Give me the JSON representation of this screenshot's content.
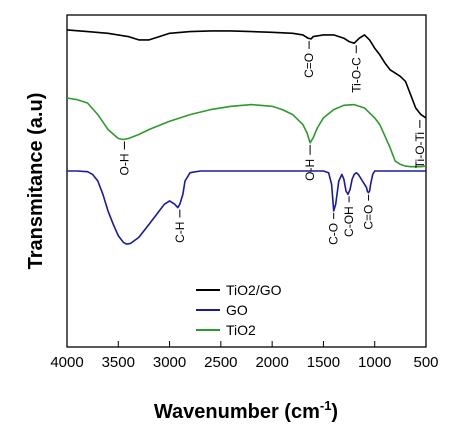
{
  "chart_data": {
    "type": "line",
    "title": "",
    "xlabel": "Wavenumber (cm",
    "xlabel_superscript": "-1",
    "xlabel_close": ")",
    "ylabel": "Transmitance (a.u)",
    "xlim": [
      4000,
      500
    ],
    "x_reversed": true,
    "y_ticks_shown": false,
    "grid": false,
    "xticks": [
      4000,
      3500,
      3000,
      2500,
      2000,
      1500,
      1000,
      500
    ],
    "xtick_labels": [
      "4000",
      "3500",
      "3000",
      "2500",
      "2000",
      "1500",
      "1000",
      "500"
    ],
    "legend": {
      "placement": "bottom-center",
      "entries": [
        {
          "label": "TiO2/GO",
          "color": "#000000"
        },
        {
          "label": "GO",
          "color": "#1a1aa0"
        },
        {
          "label": "TiO2",
          "color": "#2e9a2e"
        }
      ]
    },
    "series": [
      {
        "name": "TiO2/GO",
        "color": "#000000",
        "x": [
          4000,
          3800,
          3600,
          3400,
          3300,
          3200,
          3100,
          3000,
          2800,
          2600,
          2400,
          2200,
          2000,
          1800,
          1700,
          1650,
          1620,
          1600,
          1500,
          1400,
          1300,
          1250,
          1200,
          1150,
          1100,
          1050,
          1000,
          950,
          900,
          850,
          800,
          750,
          700,
          650,
          600,
          550,
          500
        ],
        "y": [
          0.955,
          0.95,
          0.945,
          0.935,
          0.925,
          0.925,
          0.935,
          0.945,
          0.95,
          0.952,
          0.952,
          0.95,
          0.948,
          0.945,
          0.94,
          0.93,
          0.928,
          0.935,
          0.94,
          0.94,
          0.93,
          0.92,
          0.915,
          0.93,
          0.94,
          0.925,
          0.9,
          0.88,
          0.855,
          0.835,
          0.825,
          0.815,
          0.8,
          0.76,
          0.72,
          0.7,
          0.69
        ]
      },
      {
        "name": "TiO2",
        "color": "#2e9a2e",
        "x": [
          4000,
          3900,
          3800,
          3700,
          3600,
          3500,
          3450,
          3400,
          3300,
          3200,
          3000,
          2800,
          2600,
          2400,
          2200,
          2000,
          1900,
          1800,
          1700,
          1660,
          1630,
          1600,
          1560,
          1500,
          1400,
          1300,
          1200,
          1100,
          1000,
          950,
          900,
          850,
          800,
          750,
          700,
          650,
          600,
          550,
          500
        ],
        "y": [
          0.75,
          0.745,
          0.735,
          0.7,
          0.655,
          0.628,
          0.625,
          0.628,
          0.64,
          0.655,
          0.68,
          0.7,
          0.715,
          0.725,
          0.73,
          0.725,
          0.715,
          0.7,
          0.67,
          0.645,
          0.615,
          0.63,
          0.66,
          0.69,
          0.715,
          0.728,
          0.73,
          0.72,
          0.69,
          0.67,
          0.635,
          0.6,
          0.56,
          0.55,
          0.545,
          0.543,
          0.543,
          0.543,
          0.545
        ]
      },
      {
        "name": "GO",
        "color": "#1a1aa0",
        "x": [
          4000,
          3900,
          3800,
          3750,
          3700,
          3650,
          3600,
          3550,
          3500,
          3450,
          3420,
          3380,
          3300,
          3200,
          3100,
          3050,
          3000,
          2950,
          2920,
          2900,
          2870,
          2850,
          2800,
          2700,
          2500,
          2300,
          2100,
          1900,
          1800,
          1700,
          1600,
          1500,
          1450,
          1420,
          1400,
          1380,
          1350,
          1320,
          1300,
          1280,
          1260,
          1240,
          1220,
          1200,
          1180,
          1160,
          1140,
          1120,
          1100,
          1080,
          1070,
          1060,
          1050,
          1040,
          1020,
          1000,
          900,
          800,
          700,
          600,
          500
        ],
        "y": [
          0.53,
          0.53,
          0.528,
          0.52,
          0.5,
          0.46,
          0.41,
          0.37,
          0.335,
          0.315,
          0.31,
          0.312,
          0.33,
          0.37,
          0.41,
          0.43,
          0.44,
          0.43,
          0.42,
          0.43,
          0.46,
          0.5,
          0.525,
          0.53,
          0.53,
          0.53,
          0.53,
          0.53,
          0.53,
          0.53,
          0.53,
          0.53,
          0.525,
          0.49,
          0.41,
          0.43,
          0.5,
          0.52,
          0.505,
          0.47,
          0.46,
          0.475,
          0.505,
          0.52,
          0.525,
          0.52,
          0.51,
          0.5,
          0.49,
          0.48,
          0.468,
          0.465,
          0.47,
          0.49,
          0.52,
          0.53,
          0.53,
          0.53,
          0.53,
          0.53,
          0.53
        ]
      }
    ],
    "annotations": [
      {
        "text": "C=O",
        "x": 1640
      },
      {
        "text": "Ti-O-C",
        "x": 1180
      },
      {
        "text": "O-H",
        "x": 3440
      },
      {
        "text": "O-H",
        "x": 1630
      },
      {
        "text": "Ti-O-Ti",
        "x": 560
      },
      {
        "text": "C-H",
        "x": 2900
      },
      {
        "text": "C-O",
        "x": 1400
      },
      {
        "text": "C-OH",
        "x": 1250
      },
      {
        "text": "C=O",
        "x": 1060
      }
    ]
  }
}
